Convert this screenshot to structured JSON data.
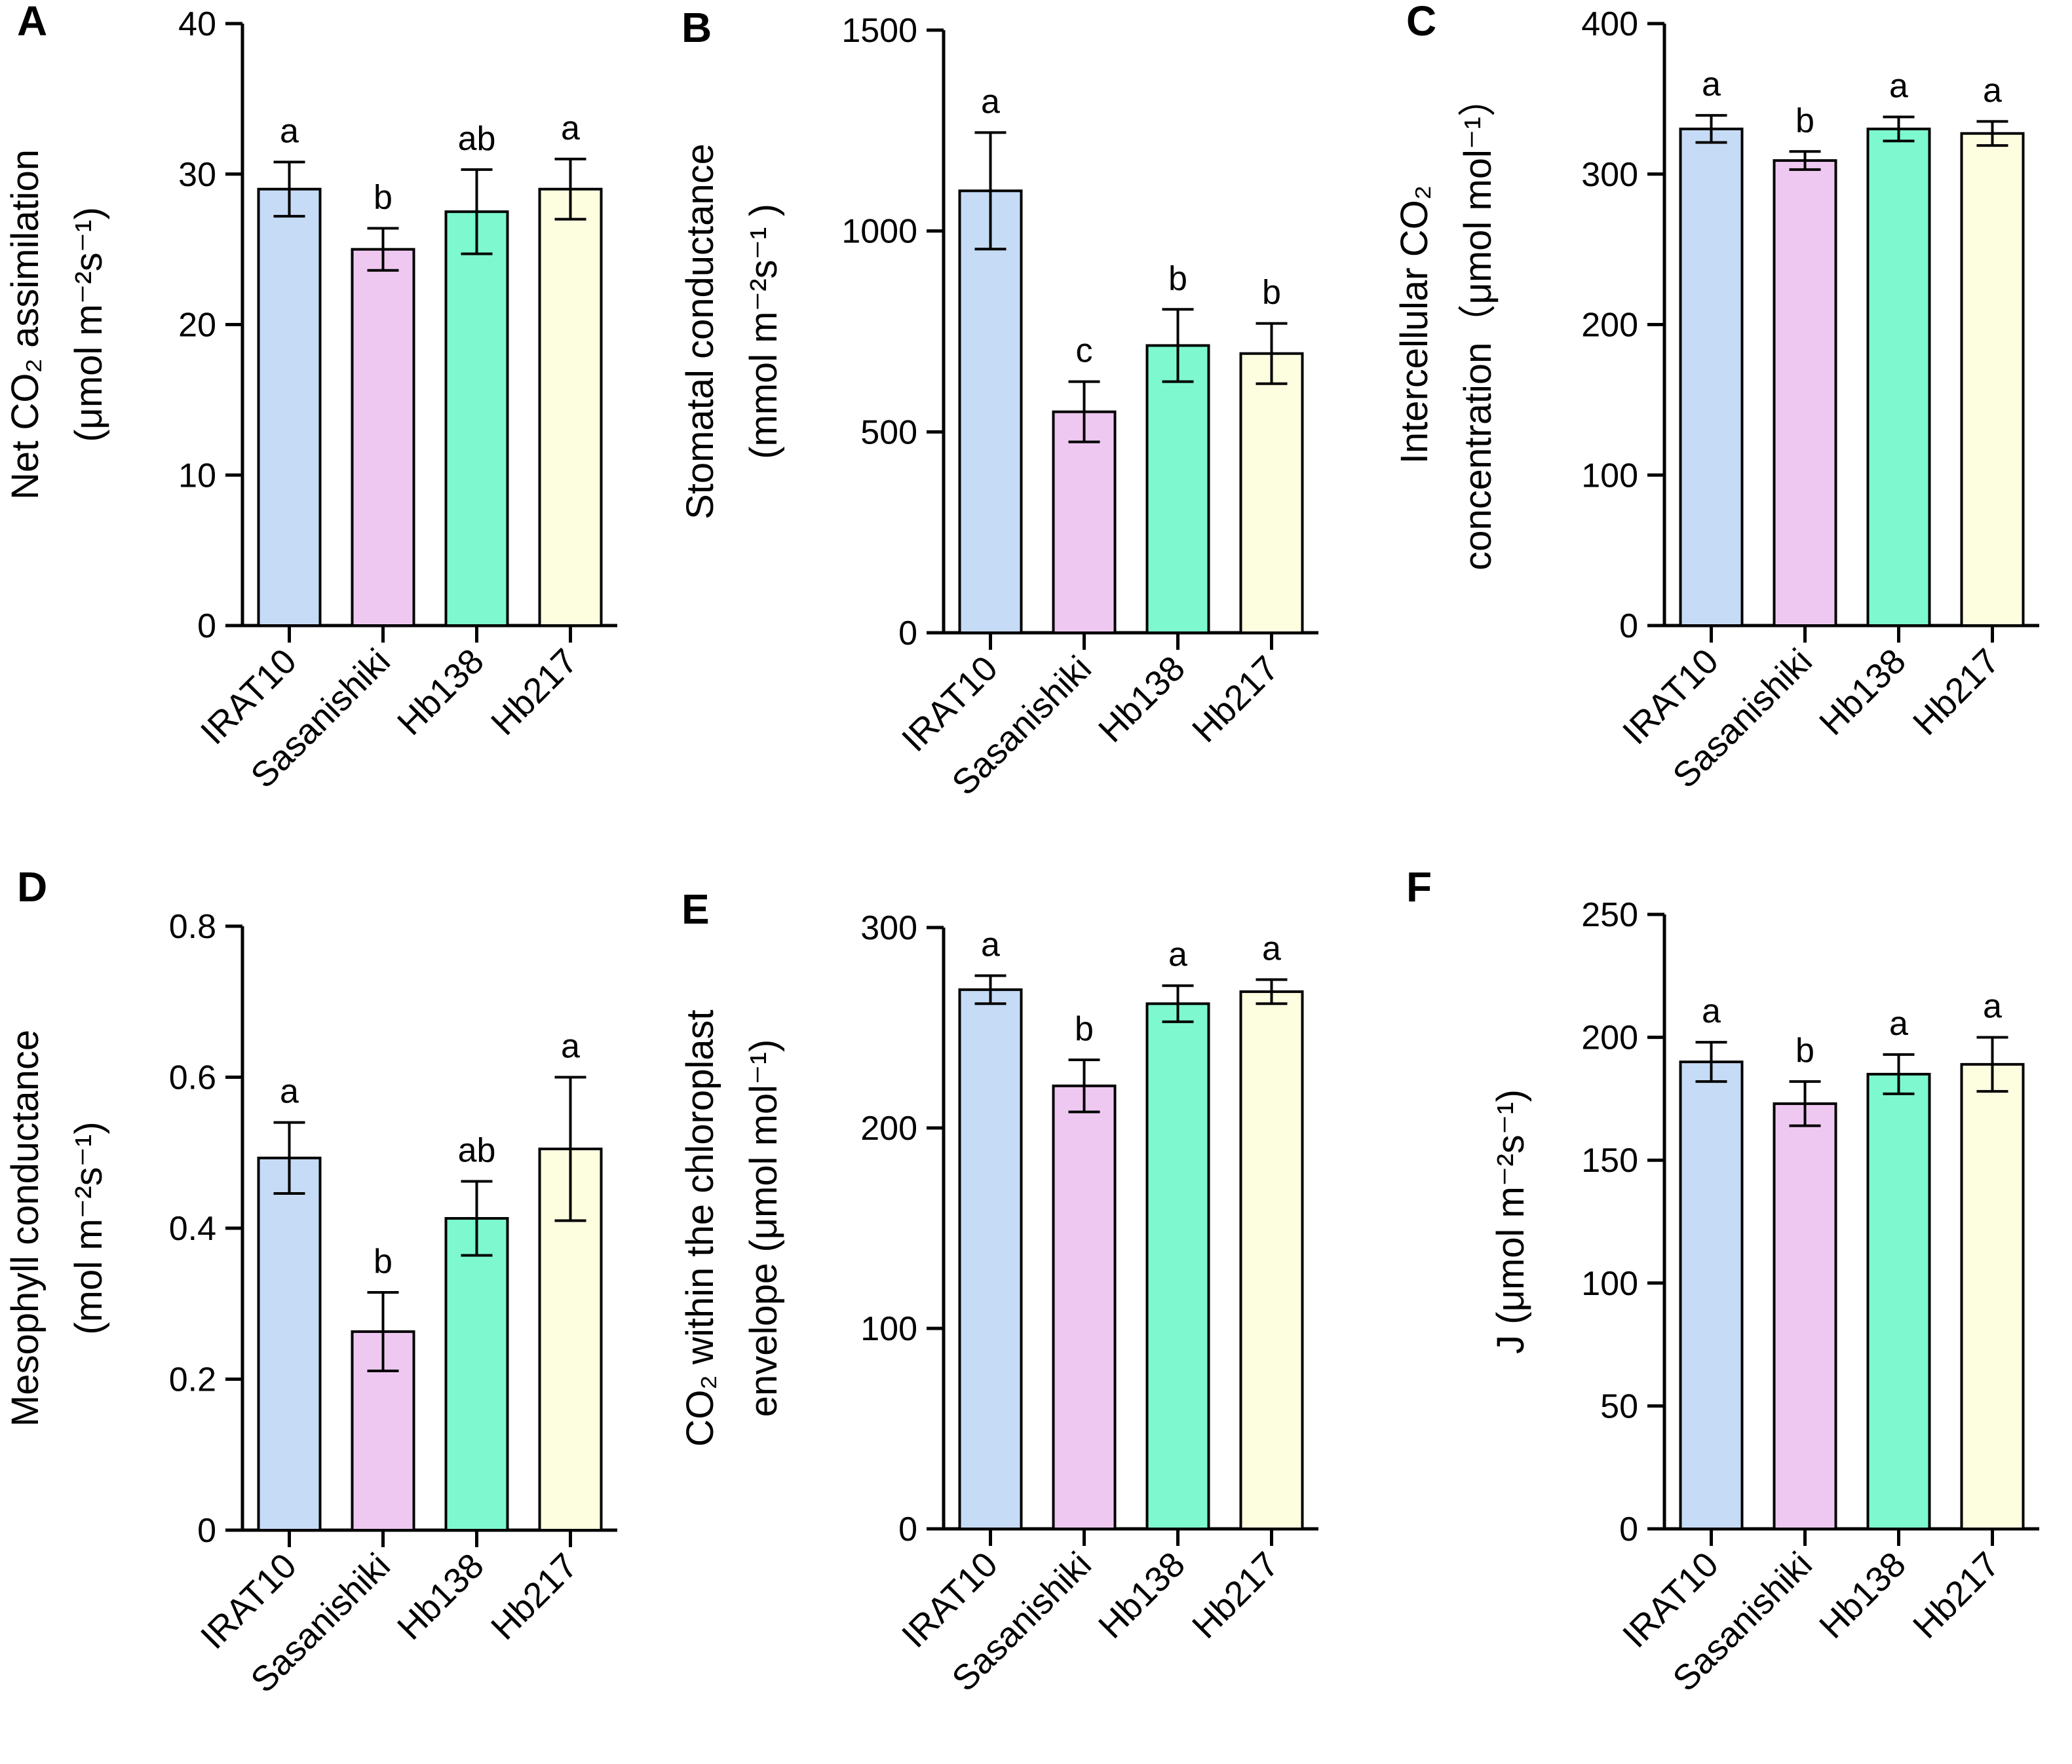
{
  "figure": {
    "categories": [
      "IRAT10",
      "Sasanishiki",
      "Hb138",
      "Hb217"
    ],
    "colors": [
      "#c6dbf5",
      "#efc8f2",
      "#7df8cf",
      "#fdfde0"
    ]
  },
  "chart_data": [
    {
      "type": "bar",
      "letter": "A",
      "title": "",
      "categories": [
        "IRAT10",
        "Sasanishiki",
        "Hb138",
        "Hb217"
      ],
      "values": [
        29,
        25,
        27.5,
        29
      ],
      "errors": [
        1.8,
        1.4,
        2.8,
        2.0
      ],
      "sig_labels": [
        "a",
        "b",
        "ab",
        "a"
      ],
      "ylim": [
        0,
        40
      ],
      "yticks": [
        0,
        10,
        20,
        30,
        40
      ],
      "ylabel_line1": "Net CO₂ assimilation",
      "ylabel_line2": "(μmol m⁻²s⁻¹)",
      "xlabel": ""
    },
    {
      "type": "bar",
      "letter": "B",
      "title": "",
      "categories": [
        "IRAT10",
        "Sasanishiki",
        "Hb138",
        "Hb217"
      ],
      "values": [
        1100,
        550,
        715,
        695
      ],
      "errors": [
        145,
        75,
        90,
        75
      ],
      "sig_labels": [
        "a",
        "c",
        "b",
        "b"
      ],
      "ylim": [
        0,
        1500
      ],
      "yticks": [
        0,
        500,
        1000,
        1500
      ],
      "ylabel_line1": "Stomatal conductance",
      "ylabel_line2": "(mmol m⁻²s⁻¹ )",
      "xlabel": ""
    },
    {
      "type": "bar",
      "letter": "C",
      "title": "",
      "categories": [
        "IRAT10",
        "Sasanishiki",
        "Hb138",
        "Hb217"
      ],
      "values": [
        330,
        309,
        330,
        327
      ],
      "errors": [
        9,
        6,
        8,
        8
      ],
      "sig_labels": [
        "a",
        "b",
        "a",
        "a"
      ],
      "ylim": [
        0,
        400
      ],
      "yticks": [
        0,
        100,
        200,
        300,
        400
      ],
      "ylabel_line1": "Intercellular CO₂",
      "ylabel_line2": "concentration（μmol mol⁻¹）",
      "xlabel": ""
    },
    {
      "type": "bar",
      "letter": "D",
      "title": "",
      "categories": [
        "IRAT10",
        "Sasanishiki",
        "Hb138",
        "Hb217"
      ],
      "values": [
        0.493,
        0.263,
        0.413,
        0.505
      ],
      "errors": [
        0.047,
        0.052,
        0.049,
        0.095
      ],
      "sig_labels": [
        "a",
        "b",
        "ab",
        "a"
      ],
      "ylim": [
        0,
        0.8
      ],
      "yticks": [
        0.0,
        0.2,
        0.4,
        0.6,
        0.8
      ],
      "ylabel_line1": "Mesophyll conductance",
      "ylabel_line2": "(mol m⁻²s⁻¹)",
      "xlabel": ""
    },
    {
      "type": "bar",
      "letter": "E",
      "title": "",
      "categories": [
        "IRAT10",
        "Sasanishiki",
        "Hb138",
        "Hb217"
      ],
      "values": [
        269,
        221,
        262,
        268
      ],
      "errors": [
        7,
        13,
        9,
        6
      ],
      "sig_labels": [
        "a",
        "b",
        "a",
        "a"
      ],
      "ylim": [
        0,
        300
      ],
      "yticks": [
        0,
        100,
        200,
        300
      ],
      "ylabel_line1": "CO₂ within the chloroplast",
      "ylabel_line2": "envelope (μmol mol⁻¹)",
      "xlabel": ""
    },
    {
      "type": "bar",
      "letter": "F",
      "title": "",
      "categories": [
        "IRAT10",
        "Sasanishiki",
        "Hb138",
        "Hb217"
      ],
      "values": [
        190,
        173,
        185,
        189
      ],
      "errors": [
        8,
        9,
        8,
        11
      ],
      "sig_labels": [
        "a",
        "b",
        "a",
        "a"
      ],
      "ylim": [
        0,
        250
      ],
      "yticks": [
        0,
        50,
        100,
        150,
        200,
        250
      ],
      "ylabel_line1": "J (μmol m⁻²s⁻¹)",
      "ylabel_line2": "",
      "xlabel": ""
    }
  ]
}
